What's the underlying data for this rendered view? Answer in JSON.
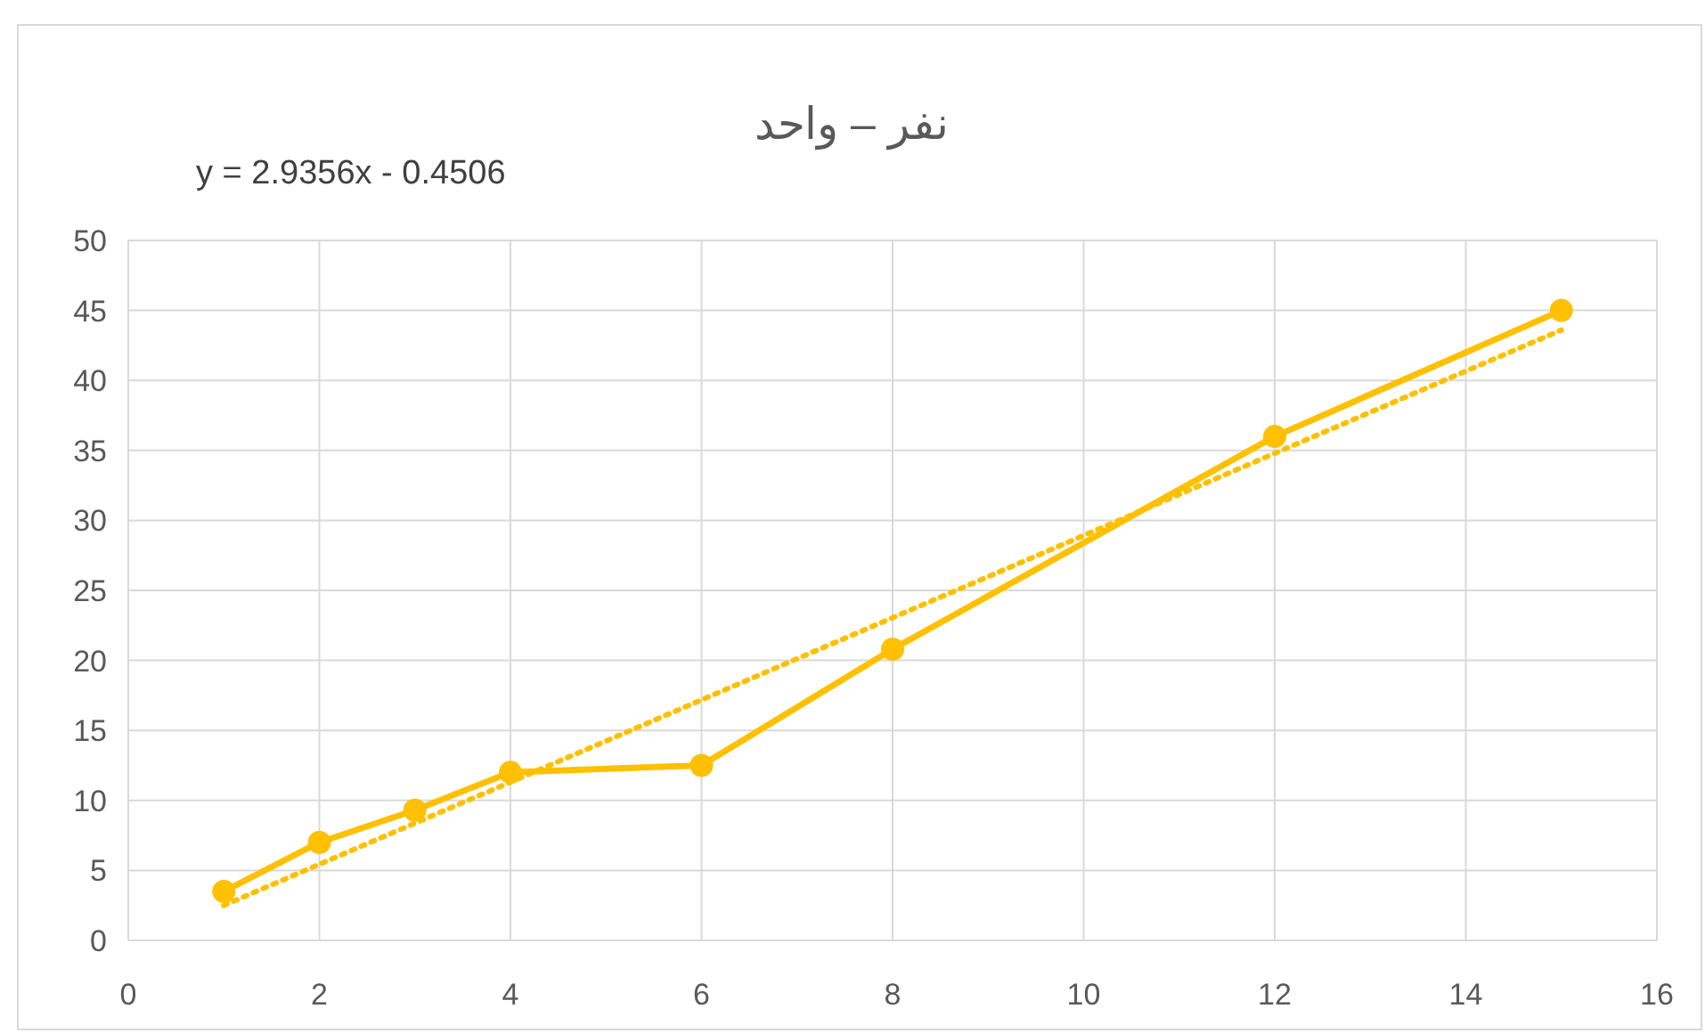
{
  "chart_data": {
    "type": "line",
    "title": "نفر – واحد",
    "annotations": [
      "y = 2.9356x - 0.4506"
    ],
    "xlim": [
      0,
      16
    ],
    "xticks": [
      0,
      2,
      4,
      6,
      8,
      10,
      12,
      14,
      16
    ],
    "ylim": [
      0,
      50
    ],
    "yticks": [
      0,
      5,
      10,
      15,
      20,
      25,
      30,
      35,
      40,
      45,
      50
    ],
    "grid": true,
    "series": [
      {
        "type": "line",
        "color": "#ffc000",
        "marker": "circle",
        "line_style": "solid",
        "x": [
          1,
          2,
          3,
          4,
          6,
          8,
          12,
          15
        ],
        "values": [
          3.5,
          7,
          9.3,
          12,
          12.5,
          20.8,
          36,
          45
        ]
      },
      {
        "type": "line",
        "color": "#ffc000",
        "marker": "none",
        "line_style": "dotted",
        "x": [
          1,
          15
        ],
        "values": [
          2.5,
          43.6
        ]
      }
    ]
  }
}
